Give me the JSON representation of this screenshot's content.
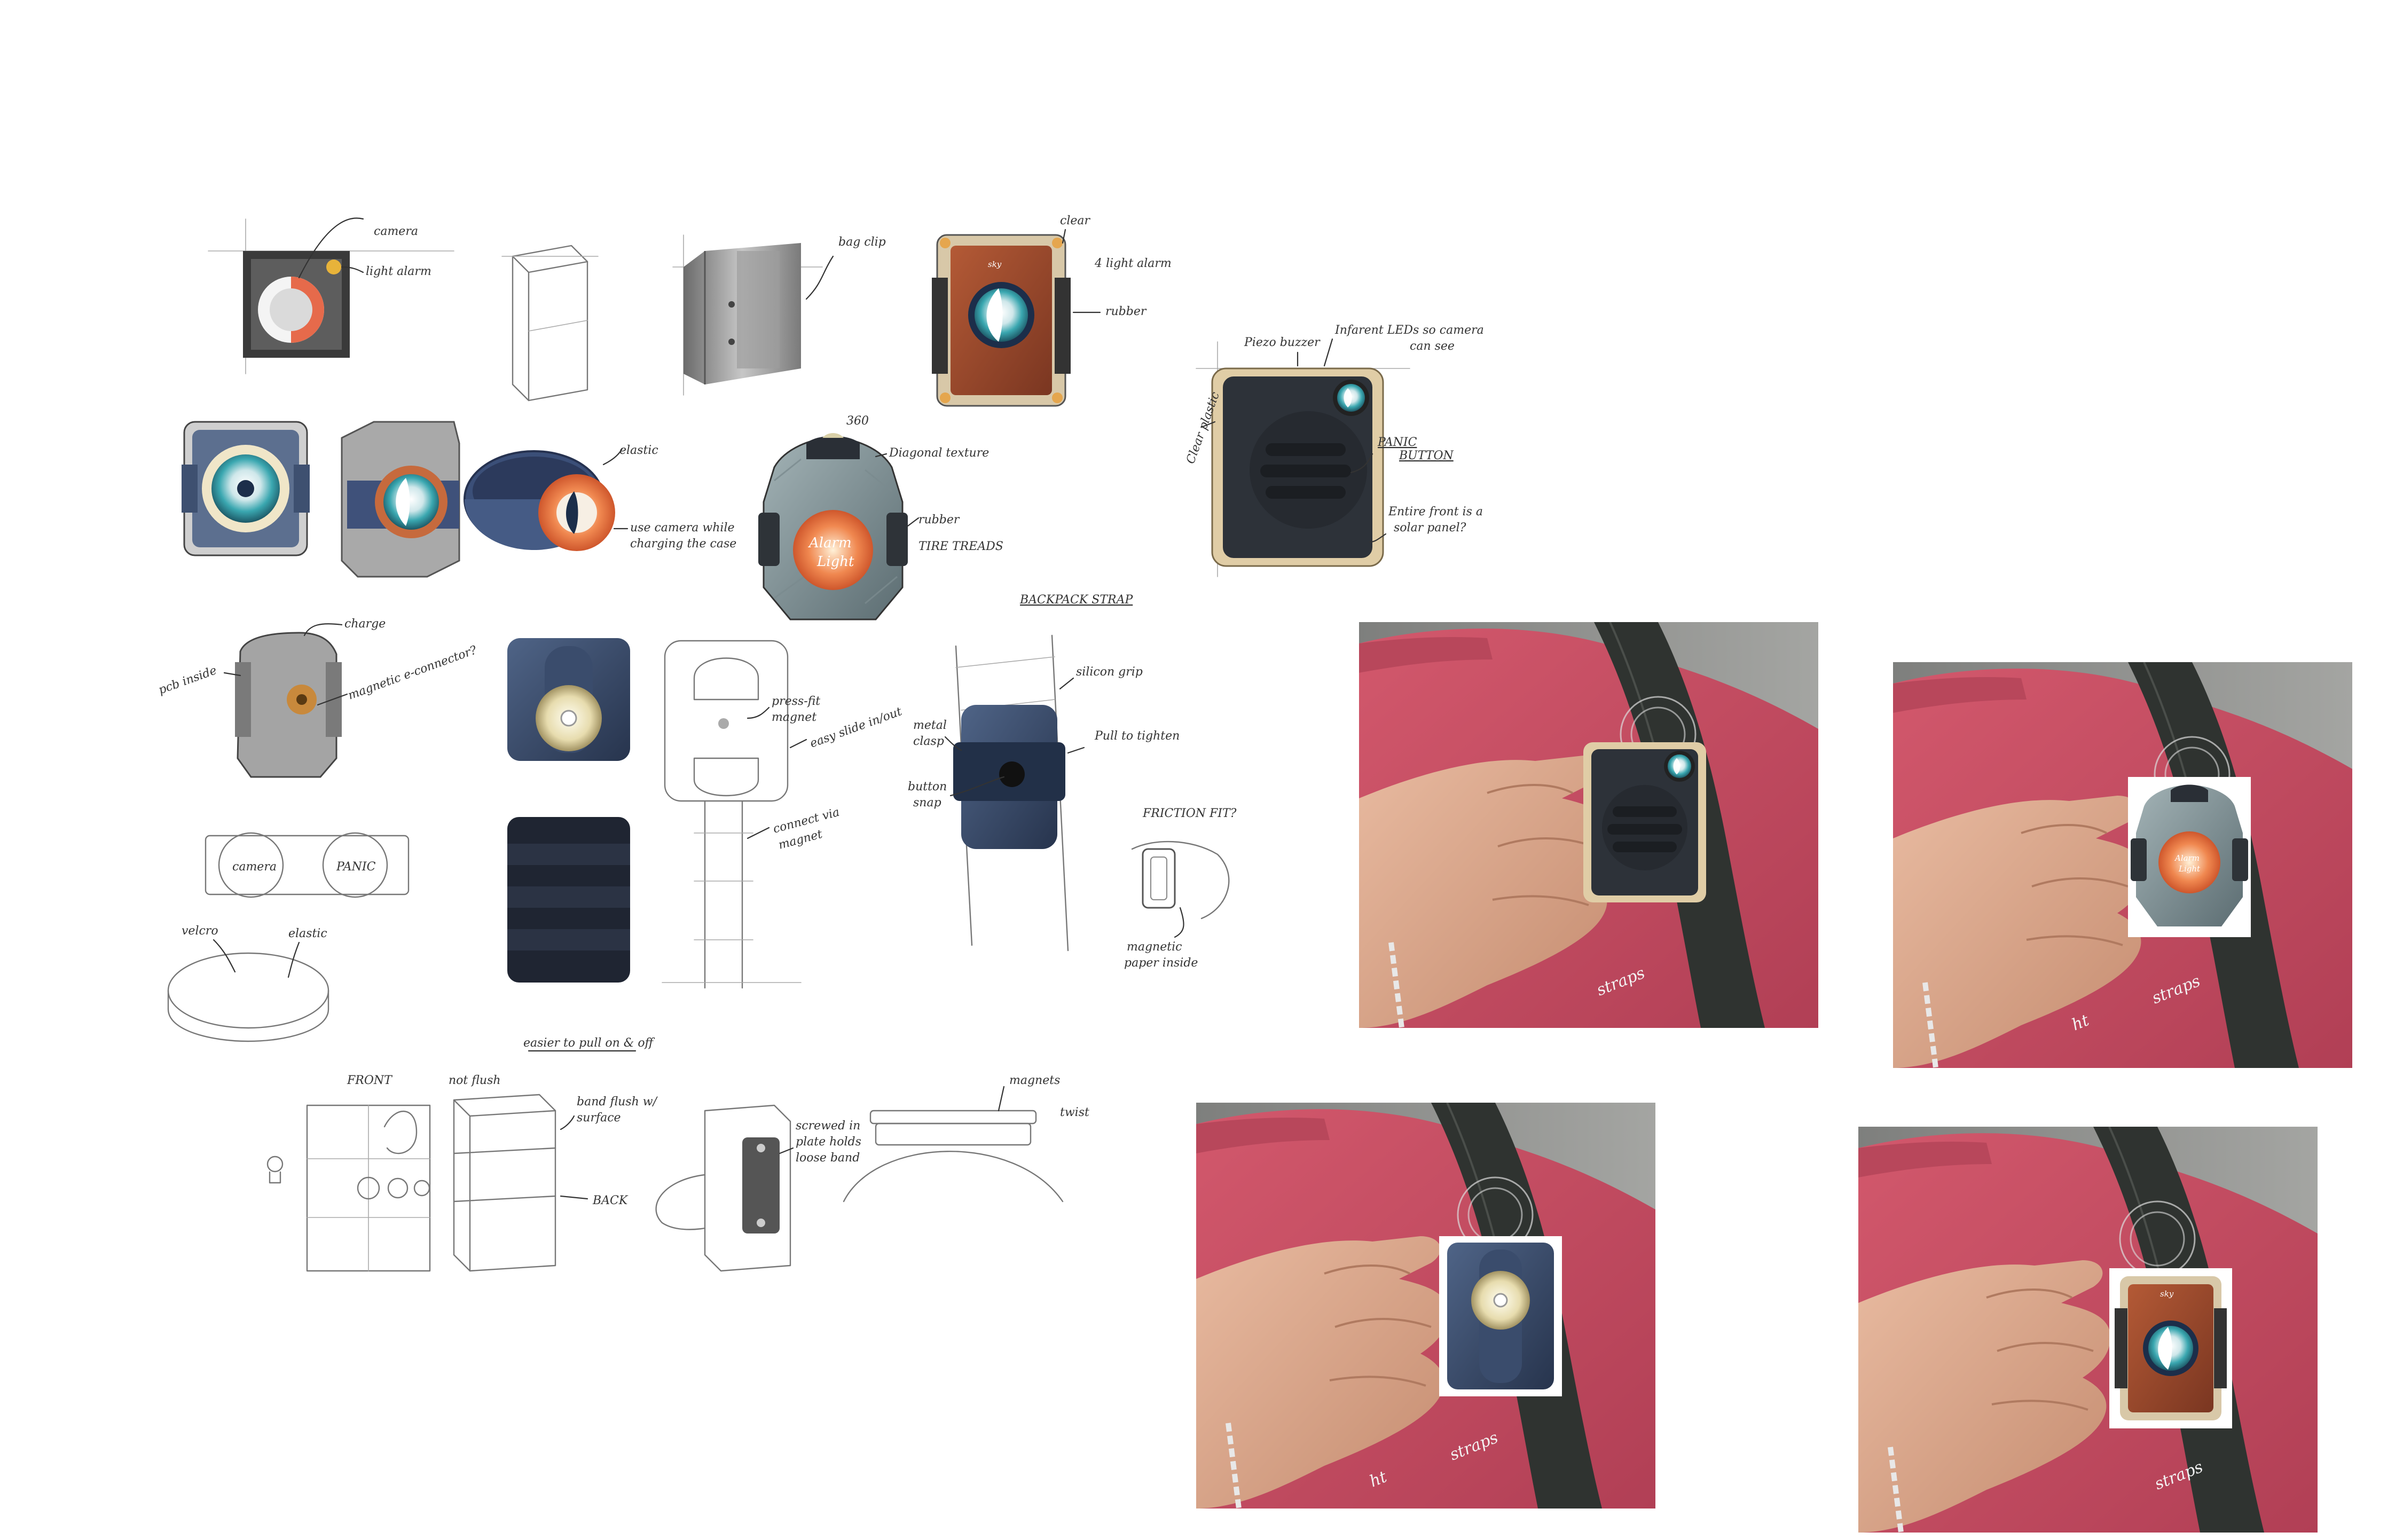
{
  "annotations": {
    "camera": "camera",
    "light_alarm": "light alarm",
    "bag_clip": "bag clip",
    "clear": "clear",
    "four_light_alarm": "4 light alarm",
    "rubber_top": "rubber",
    "piezo_buzzer": "Piezo buzzer",
    "infrared_leds_1": "Infarent LEDs so camera",
    "infrared_leds_2": "can see",
    "clear_plastic": "Clear plastic",
    "panic_button_1": "PANIC",
    "panic_button_2": "BUTTON",
    "solar_panel_1": "Entire front is a",
    "solar_panel_2": "solar panel?",
    "elastic_top": "elastic",
    "use_camera_1": "use camera while",
    "use_camera_2": "charging the case",
    "diagonal_texture": "Diagonal texture",
    "rubber_mid": "rubber",
    "tire_treads": "TIRE TREADS",
    "three_sixty": "360",
    "backpack_strap": "BACKPACK STRAP",
    "silicon_grip": "silicon grip",
    "metal_clasp_1": "metal",
    "metal_clasp_2": "clasp",
    "pull_to_tighten": "Pull to tighten",
    "button_snap_1": "button",
    "button_snap_2": "snap",
    "friction_fit": "FRICTION FIT?",
    "magnetic_paper_1": "magnetic",
    "magnetic_paper_2": "paper inside",
    "charge": "charge",
    "pcb_inside": "pcb inside",
    "magnetic_connector": "magnetic e-connector?",
    "press_fit_magnet_1": "press-fit",
    "press_fit_magnet_2": "magnet",
    "easy_slide": "easy slide in/out",
    "connect_via_1": "connect via",
    "connect_via_2": "magnet",
    "camera_button": "camera",
    "panic_circle": "PANIC",
    "velcro": "velcro",
    "elastic_bottom": "elastic",
    "easier_pull": "easier to pull on & off",
    "front": "FRONT",
    "not_flush": "not flush",
    "band_flush_1": "band flush w/",
    "band_flush_2": "surface",
    "back": "BACK",
    "screwed_1": "screwed in",
    "screwed_2": "plate holds",
    "screwed_3": "loose band",
    "magnets": "magnets",
    "twist": "twist"
  },
  "device_labels": {
    "alarm_light": "Alarm",
    "alarm_light_2": "Light",
    "sky": "sky"
  },
  "photos": {
    "watermark": "straps",
    "watermark_partial": "ht"
  },
  "colors": {
    "shirt": "#c84a5f",
    "backpack_strap": "#2f3330",
    "background_wall": "#8d8e8c",
    "skin": "#d9a58a",
    "device_brown": "#9c4a2c",
    "device_navy": "#3d4f6d",
    "device_dark": "#2a2e35",
    "accent_orange": "#e86c3a",
    "lens_teal": "#3aa7b0"
  },
  "icons": [
    "camera-lens-icon",
    "alarm-light-icon",
    "panic-button-icon",
    "magnet-icon"
  ]
}
